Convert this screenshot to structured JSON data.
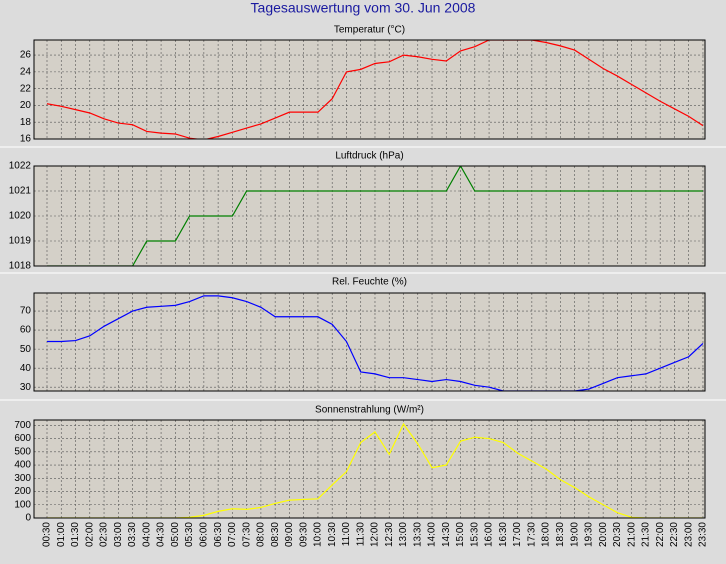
{
  "title": "Tagesauswertung vom 30. Jun 2008",
  "chart_data": [
    {
      "type": "line",
      "title": "Temperatur (°C)",
      "color": "#ff0000",
      "ylim": [
        16,
        27.8
      ],
      "yticks": [
        16,
        18,
        20,
        22,
        24,
        26
      ],
      "grid": true,
      "values": [
        20.2,
        19.9,
        19.5,
        19.1,
        18.4,
        17.9,
        17.7,
        16.9,
        16.7,
        16.6,
        16.1,
        15.9,
        16.3,
        16.8,
        17.3,
        17.8,
        18.5,
        19.2,
        19.2,
        19.2,
        20.8,
        24.0,
        24.3,
        25.0,
        25.2,
        26.0,
        25.8,
        25.5,
        25.3,
        26.5,
        27.0,
        27.8,
        27.8,
        27.8,
        27.8,
        27.5,
        27.1,
        26.6,
        25.5,
        24.4,
        23.5,
        22.5,
        21.5,
        20.5,
        19.6,
        18.7,
        17.6
      ]
    },
    {
      "type": "line",
      "title": "Luftdruck (hPa)",
      "color": "#008000",
      "ylim": [
        1018,
        1022
      ],
      "yticks": [
        1018,
        1019,
        1020,
        1021,
        1022
      ],
      "grid": true,
      "values": [
        1018,
        1018,
        1018,
        1018,
        1018,
        1018,
        1018,
        1019,
        1019,
        1019,
        1020,
        1020,
        1020,
        1020,
        1021,
        1021,
        1021,
        1021,
        1021,
        1021,
        1021,
        1021,
        1021,
        1021,
        1021,
        1021,
        1021,
        1021,
        1021,
        1022,
        1021,
        1021,
        1021,
        1021,
        1021,
        1021,
        1021,
        1021,
        1021,
        1021,
        1021,
        1021,
        1021,
        1021,
        1021,
        1021,
        1021
      ]
    },
    {
      "type": "line",
      "title": "Rel. Feuchte (%)",
      "color": "#0000ff",
      "ylim": [
        28,
        79.5
      ],
      "yticks": [
        30,
        40,
        50,
        60,
        70
      ],
      "grid": true,
      "values": [
        54,
        54,
        54.5,
        57,
        62,
        66,
        70,
        72,
        72.5,
        73,
        75,
        78,
        78,
        77,
        75,
        72,
        67,
        67,
        67,
        67,
        63,
        54,
        38,
        37,
        35,
        35,
        34,
        33,
        34,
        33,
        31,
        30,
        28,
        28,
        28,
        28,
        28,
        28,
        29,
        32,
        35,
        36,
        37,
        40,
        43,
        46,
        53
      ]
    },
    {
      "type": "line",
      "title": "Sonnenstrahlung (W/m²)",
      "color": "#ffff00",
      "ylim": [
        0,
        740
      ],
      "yticks": [
        0,
        100,
        200,
        300,
        400,
        500,
        600,
        700
      ],
      "grid": true,
      "categories": [
        "00:30",
        "01:00",
        "01:30",
        "02:00",
        "02:30",
        "03:00",
        "03:30",
        "04:00",
        "04:30",
        "05:00",
        "05:30",
        "06:00",
        "06:30",
        "07:00",
        "07:30",
        "08:00",
        "08:30",
        "09:00",
        "09:30",
        "10:00",
        "10:30",
        "11:00",
        "11:30",
        "12:00",
        "12:30",
        "13:00",
        "13:30",
        "14:00",
        "14:30",
        "15:00",
        "15:30",
        "16:00",
        "16:30",
        "17:00",
        "17:30",
        "18:00",
        "18:30",
        "19:00",
        "19:30",
        "20:00",
        "20:30",
        "21:00",
        "21:30",
        "22:00",
        "22:30",
        "23:00",
        "23:30"
      ],
      "values": [
        0,
        0,
        0,
        0,
        0,
        0,
        0,
        0,
        0,
        0,
        5,
        20,
        50,
        70,
        65,
        80,
        110,
        135,
        140,
        145,
        250,
        350,
        570,
        650,
        480,
        710,
        560,
        380,
        400,
        580,
        610,
        600,
        570,
        490,
        430,
        370,
        290,
        230,
        160,
        100,
        40,
        5,
        0,
        0,
        0,
        0,
        0
      ]
    }
  ]
}
